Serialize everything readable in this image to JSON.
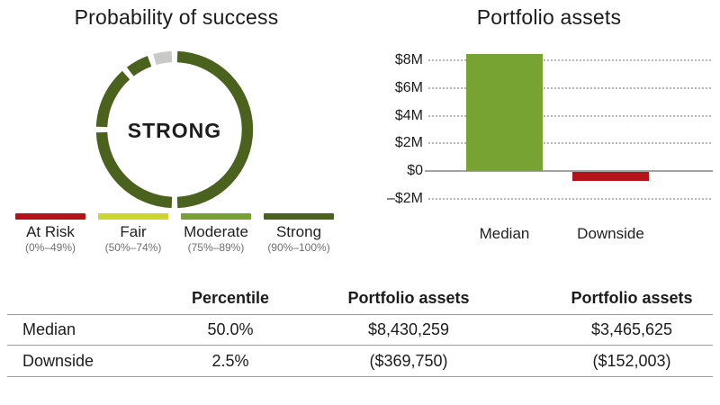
{
  "chart_data": [
    {
      "type": "donut-gauge",
      "title": "Probability of success",
      "center_label": "STRONG",
      "probability_band": "Strong",
      "ring_color": "#4b611e",
      "remainder_color": "#c9c9c7",
      "segments": [
        {
          "start_pct": 0.6,
          "end_pct": 49.4,
          "color": "#4b611e",
          "name": "at-risk-span"
        },
        {
          "start_pct": 50.6,
          "end_pct": 74.4,
          "color": "#4b611e",
          "name": "fair-span"
        },
        {
          "start_pct": 75.6,
          "end_pct": 88.4,
          "color": "#4b611e",
          "name": "moderate-span"
        },
        {
          "start_pct": 89.6,
          "end_pct": 94.4,
          "color": "#4b611e",
          "name": "strong-span"
        },
        {
          "start_pct": 95.6,
          "end_pct": 99.4,
          "color": "#c9c9c7",
          "name": "remainder-span"
        }
      ],
      "legend": [
        {
          "label": "At Risk",
          "range": "(0%–49%)",
          "color": "#b51219"
        },
        {
          "label": "Fair",
          "range": "(50%–74%)",
          "color": "#cdd62f"
        },
        {
          "label": "Moderate",
          "range": "(75%–89%)",
          "color": "#77a233"
        },
        {
          "label": "Strong",
          "range": "(90%–100%)",
          "color": "#4b611e"
        }
      ]
    },
    {
      "type": "bar",
      "title": "Portfolio assets",
      "categories": [
        "Median",
        "Downside"
      ],
      "values": [
        8430259,
        -369750
      ],
      "bar_colors": [
        "#76a331",
        "#b5121b"
      ],
      "ylim": [
        -2000000,
        9000000
      ],
      "grid": "dotted-horizontal",
      "yticks": [
        {
          "value": 8000000,
          "label": "$8M"
        },
        {
          "value": 6000000,
          "label": "$6M"
        },
        {
          "value": 4000000,
          "label": "$4M"
        },
        {
          "value": 2000000,
          "label": "$2M"
        },
        {
          "value": 0,
          "label": "$0"
        },
        {
          "value": -2000000,
          "label": "–$2M"
        }
      ]
    },
    {
      "type": "table",
      "columns": [
        "",
        "Percentile",
        "Portfolio assets",
        "Portfolio assets"
      ],
      "rows": [
        [
          "Median",
          "50.0%",
          "$8,430,259",
          "$3,465,625"
        ],
        [
          "Downside",
          "2.5%",
          "($369,750)",
          "($152,003)"
        ]
      ]
    }
  ]
}
